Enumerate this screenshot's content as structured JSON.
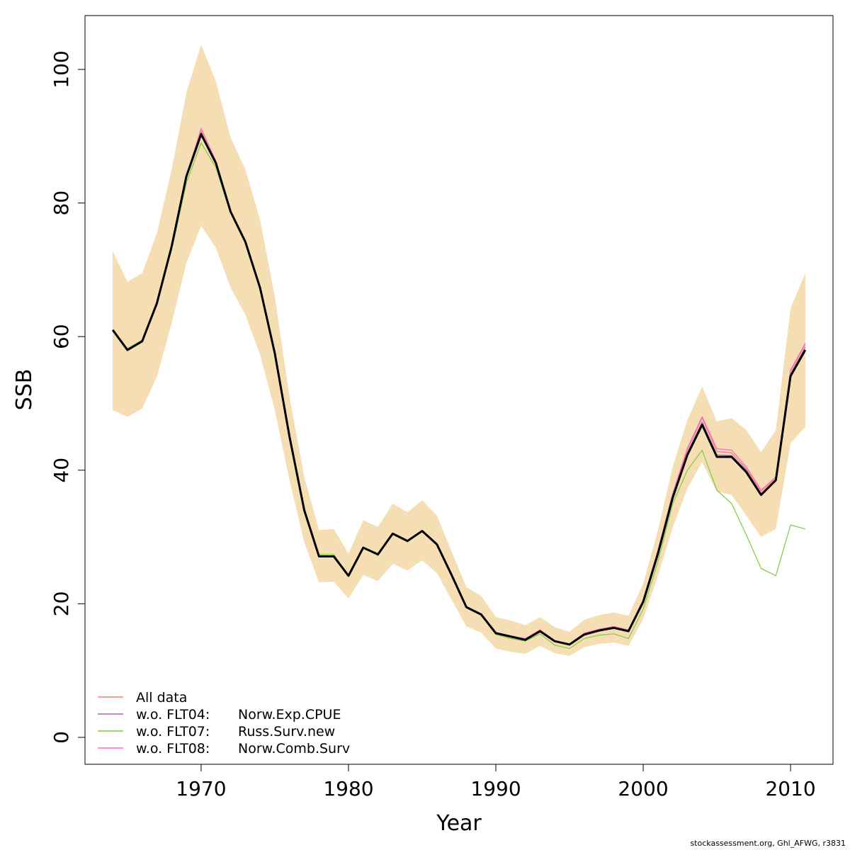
{
  "chart_data": {
    "type": "line",
    "x_label": "Year",
    "y_label": "SSB",
    "footer": "stockassessment.org, Ghl_AFWG, r3831",
    "x": [
      1964,
      1965,
      1966,
      1967,
      1968,
      1969,
      1970,
      1971,
      1972,
      1973,
      1974,
      1975,
      1976,
      1977,
      1978,
      1979,
      1980,
      1981,
      1982,
      1983,
      1984,
      1985,
      1986,
      1987,
      1988,
      1989,
      1990,
      1991,
      1992,
      1993,
      1994,
      1995,
      1996,
      1997,
      1998,
      1999,
      2000,
      2001,
      2002,
      2003,
      2004,
      2005,
      2006,
      2007,
      2008,
      2009,
      2010,
      2011
    ],
    "xlim": [
      1962.12,
      2012.88
    ],
    "xticks": [
      1970,
      1980,
      1990,
      2000,
      2010
    ],
    "ylim": [
      -4.03,
      108.06
    ],
    "yticks": [
      0,
      20,
      40,
      60,
      80,
      100
    ],
    "band_color": "#f5deb3",
    "band_upper": [
      72.8,
      68.2,
      69.5,
      75.5,
      85,
      96.5,
      103.7,
      98.2,
      89.8,
      85,
      77.5,
      66,
      51,
      39,
      31,
      31.2,
      27.5,
      32.5,
      31.5,
      35,
      33.7,
      35.5,
      33.2,
      27.8,
      22.5,
      21.2,
      18,
      17.5,
      16.8,
      18,
      16.5,
      15.8,
      17.6,
      18.3,
      18.7,
      18.2,
      23,
      31,
      40.5,
      47.5,
      52.5,
      47.3,
      47.8,
      46,
      42.7,
      46,
      64.2,
      69.5
    ],
    "band_lower": [
      49,
      48,
      49.2,
      54,
      62,
      71,
      76.6,
      73.3,
      67.3,
      63.3,
      57.3,
      49,
      38.5,
      29.2,
      23.2,
      23.3,
      20.8,
      24.3,
      23.4,
      26,
      25,
      26.5,
      24.6,
      20.6,
      16.6,
      15.7,
      13.3,
      12.8,
      12.5,
      13.7,
      12.6,
      12.2,
      13.5,
      14,
      14.2,
      13.7,
      17.7,
      24.2,
      31.4,
      37.3,
      41.2,
      36.8,
      36.3,
      33.2,
      30,
      31.2,
      44,
      46.5
    ],
    "estimate_color": "#000000",
    "estimate": [
      61,
      58,
      59.3,
      65,
      73.5,
      84,
      90.3,
      86,
      78.7,
      74.2,
      67.3,
      57.5,
      45,
      34,
      27.1,
      27.1,
      24.2,
      28.4,
      27.4,
      30.5,
      29.4,
      30.9,
      28.9,
      24.3,
      19.5,
      18.4,
      15.6,
      15.1,
      14.6,
      15.9,
      14.4,
      13.9,
      15.4,
      16,
      16.4,
      15.9,
      20.3,
      27.5,
      35.9,
      42.3,
      46.8,
      42,
      42,
      39.7,
      36.3,
      38.5,
      54.1,
      58
    ],
    "series": [
      {
        "name": "All data",
        "color": "#f47c7c",
        "values": [
          61,
          58,
          59.3,
          65,
          73.5,
          84,
          90.8,
          86,
          78.7,
          74.2,
          67.3,
          57.5,
          45,
          34,
          27.1,
          27.1,
          24.2,
          28.4,
          27.4,
          30.5,
          29.4,
          30.9,
          28.9,
          24.3,
          19.5,
          18.4,
          15.6,
          15.1,
          14.7,
          16,
          14.4,
          13.9,
          15.5,
          16.1,
          16.5,
          16,
          20.5,
          27.8,
          36.3,
          43,
          47.8,
          42.8,
          42.6,
          40.2,
          36.8,
          38.8,
          54.8,
          58.8
        ]
      },
      {
        "name": "w.o. FLT04:",
        "note": "Norw.Exp.CPUE",
        "color": "#a06fb0",
        "values": [
          61,
          58,
          59.3,
          65,
          73.5,
          84,
          90.5,
          86,
          78.7,
          74.2,
          67.3,
          57.5,
          45,
          34,
          27.1,
          27.1,
          24.2,
          28.4,
          27.4,
          30.5,
          29.4,
          30.9,
          28.9,
          24.3,
          19.5,
          18.4,
          15.6,
          15.1,
          14.6,
          15.9,
          14.4,
          13.9,
          15.4,
          16,
          16.4,
          15.9,
          20.4,
          27.6,
          36.1,
          42.6,
          47.2,
          42.3,
          42.2,
          40,
          36.5,
          38.6,
          54.4,
          58.4
        ]
      },
      {
        "name": "w.o. FLT07:",
        "note": "Russ.Surv.new",
        "color": "#7fcc3f",
        "values": [
          60.8,
          58.2,
          59.5,
          65,
          73,
          83,
          89,
          85.3,
          78.5,
          74,
          67,
          57.3,
          45,
          34,
          27.4,
          27.4,
          24.2,
          28.4,
          27.2,
          30.5,
          29.4,
          30.9,
          28.9,
          24.2,
          19.5,
          18.3,
          15.4,
          14.8,
          14.4,
          15.5,
          13.8,
          13.3,
          14.8,
          15.3,
          15.5,
          14.8,
          19.2,
          26.3,
          35,
          40,
          43,
          37,
          35,
          30.3,
          25.3,
          24.2,
          31.8,
          31.2
        ]
      },
      {
        "name": "w.o. FLT08:",
        "note": "Norw.Comb.Surv",
        "color": "#ff66cc",
        "values": [
          61,
          58,
          59.3,
          65,
          73.5,
          84,
          91.2,
          86.3,
          78.7,
          74.2,
          67.3,
          57.5,
          45,
          34,
          27.1,
          27.1,
          24.2,
          28.4,
          27.4,
          30.6,
          29.4,
          30.9,
          28.9,
          24.3,
          19.5,
          18.4,
          15.7,
          15.2,
          14.8,
          16.1,
          14.5,
          14,
          15.6,
          16.2,
          16.6,
          16.1,
          20.6,
          28,
          36.5,
          43.3,
          48,
          43.2,
          43,
          40.5,
          37,
          39,
          55,
          59
        ]
      }
    ]
  }
}
